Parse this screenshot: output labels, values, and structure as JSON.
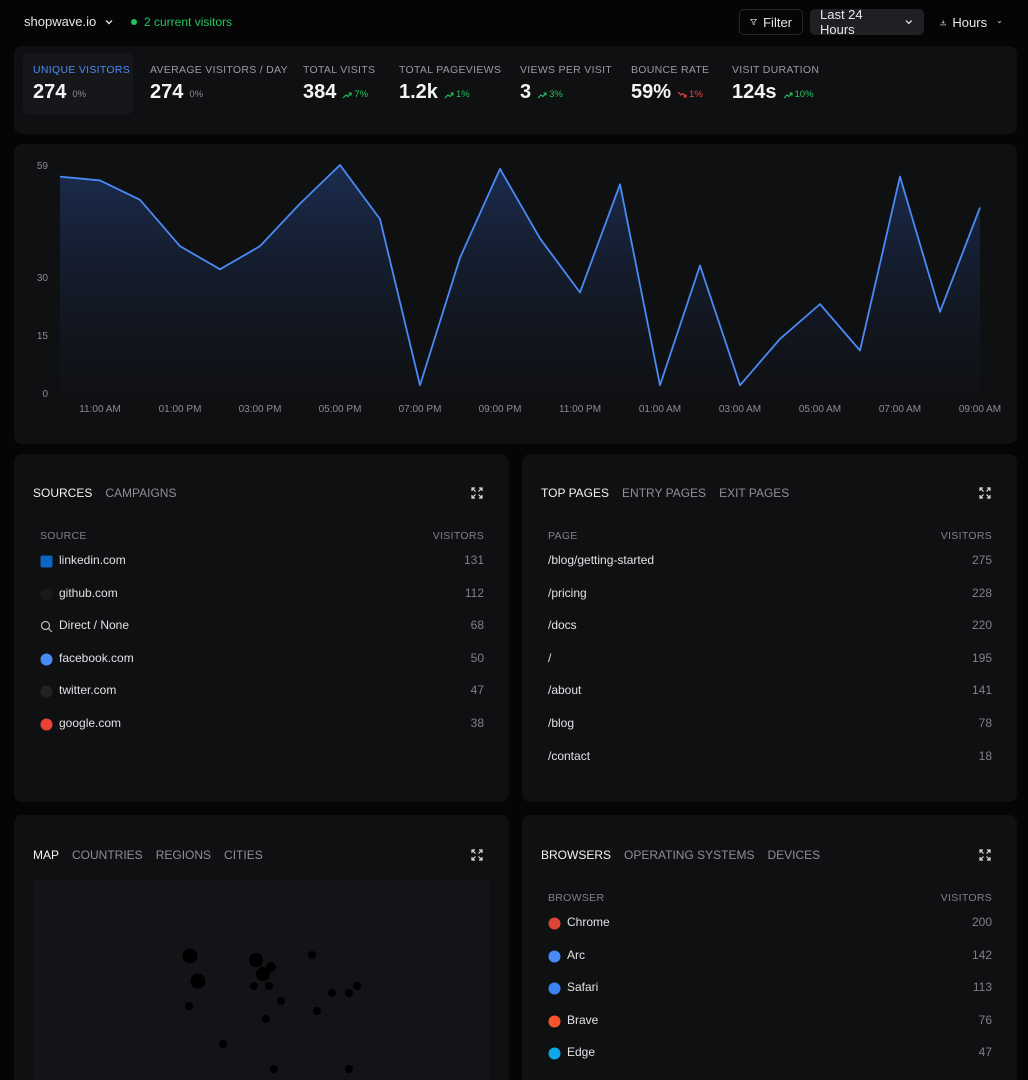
{
  "header": {
    "site": "shopwave.io",
    "visitors": "2 current visitors",
    "buttons": [
      "Filter",
      "Last 24 Hours",
      "Hours"
    ]
  },
  "stats": [
    {
      "label": "UNIQUE VISITORS",
      "value": "274",
      "change": "0%",
      "trend": "none"
    },
    {
      "label": "AVERAGE VISITORS / DAY",
      "value": "274",
      "change": "0%",
      "trend": "none"
    },
    {
      "label": "TOTAL VISITS",
      "value": "384",
      "change": "7%",
      "trend": "up"
    },
    {
      "label": "TOTAL PAGEVIEWS",
      "value": "1.2k",
      "change": "1%",
      "trend": "up"
    },
    {
      "label": "VIEWS PER VISIT",
      "value": "3",
      "change": "3%",
      "trend": "up"
    },
    {
      "label": "BOUNCE RATE",
      "value": "59%",
      "change": "1%",
      "trend": "down"
    },
    {
      "label": "VISIT DURATION",
      "value": "124s",
      "change": "10%",
      "trend": "up"
    }
  ],
  "chart_data": {
    "type": "area",
    "categories": [
      null,
      "11:00 AM",
      null,
      "01:00 PM",
      null,
      "03:00 PM",
      null,
      "05:00 PM",
      null,
      "07:00 PM",
      null,
      "09:00 PM",
      null,
      "11:00 PM",
      null,
      "01:00 AM",
      null,
      "03:00 AM",
      null,
      "05:00 AM",
      null,
      "07:00 AM",
      null,
      "09:00 AM"
    ],
    "values": [
      56,
      55,
      50,
      38,
      32,
      38,
      49,
      59,
      45,
      2,
      35,
      58,
      40,
      26,
      54,
      2,
      33,
      2,
      14,
      23,
      11,
      56,
      21,
      48
    ],
    "color": "#4a8af4",
    "ylim": [
      0,
      59
    ],
    "yticks": [
      0,
      15,
      30,
      59
    ],
    "grid": false
  },
  "panels": [
    {
      "tabs": [
        "SOURCES",
        "CAMPAIGNS"
      ],
      "columns": [
        "SOURCE",
        "VISITORS"
      ],
      "rows": [
        {
          "name": "linkedin.com",
          "visitors": 131
        },
        {
          "name": "github.com",
          "visitors": 112
        },
        {
          "name": "Direct / None",
          "visitors": 68
        },
        {
          "name": "facebook.com",
          "visitors": 50
        },
        {
          "name": "twitter.com",
          "visitors": 47
        },
        {
          "name": "google.com",
          "visitors": 38
        }
      ]
    },
    {
      "tabs": [
        "TOP PAGES",
        "ENTRY PAGES",
        "EXIT PAGES"
      ],
      "columns": [
        "PAGE",
        "VISITORS"
      ],
      "rows": [
        {
          "name": "/blog/getting-started",
          "visitors": 275
        },
        {
          "name": "/pricing",
          "visitors": 228
        },
        {
          "name": "/docs",
          "visitors": 220
        },
        {
          "name": "/",
          "visitors": 195
        },
        {
          "name": "/about",
          "visitors": 141
        },
        {
          "name": "/blog",
          "visitors": 78
        },
        {
          "name": "/contact",
          "visitors": 18
        }
      ]
    },
    {
      "tabs": [
        "MAP",
        "COUNTRIES",
        "REGIONS",
        "CITIES"
      ]
    },
    {
      "tabs": [
        "BROWSERS",
        "OPERATING SYSTEMS",
        "DEVICES"
      ],
      "columns": [
        "BROWSER",
        "VISITORS"
      ],
      "rows": [
        {
          "name": "Chrome",
          "visitors": 200
        },
        {
          "name": "Arc",
          "visitors": 142
        },
        {
          "name": "Safari",
          "visitors": 113
        },
        {
          "name": "Brave",
          "visitors": 76
        },
        {
          "name": "Edge",
          "visitors": 47
        }
      ]
    }
  ]
}
